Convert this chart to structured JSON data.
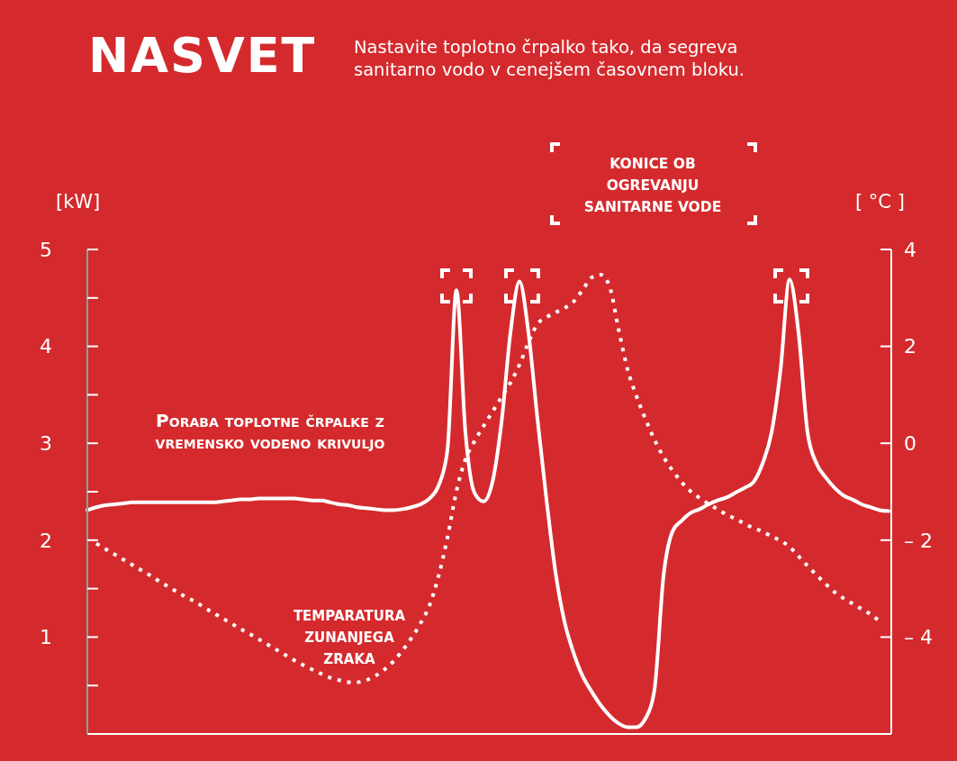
{
  "chart_data": {
    "type": "line",
    "title": "NASVET",
    "subtitle": "Nastavite toplotno črpalko tako, da segreva sanitarno vodo v cenejšem časovnem bloku.",
    "ylabel": "[kW]",
    "y2label": "[ °C ]",
    "annotations": [
      "KONICE OB OGREVANJU SANITARNE VODE"
    ],
    "categories": [
      null,
      null,
      null,
      null,
      null,
      null,
      null,
      null,
      null,
      null,
      null,
      null,
      null,
      null,
      null,
      null,
      null,
      null,
      null,
      null,
      null,
      null,
      null,
      null,
      null,
      null,
      null,
      null,
      null,
      null,
      null,
      null,
      null,
      null,
      null,
      null,
      null,
      null,
      null,
      null,
      null,
      null,
      null,
      null,
      null,
      null,
      null,
      null,
      null,
      null,
      null,
      null,
      null,
      null,
      null,
      null,
      null,
      null,
      null,
      null,
      null,
      null,
      null,
      null,
      null,
      null,
      null,
      null,
      null,
      null,
      null,
      null,
      null,
      null,
      null,
      null,
      null,
      null,
      null,
      null,
      null,
      null,
      null,
      null,
      null,
      null,
      null,
      null,
      null,
      null
    ],
    "series": [
      {
        "name": "Poraba toplotne črpalke z vremensko vodeno krivuljo",
        "color": "#ffffff",
        "line_style": "solid",
        "values": [
          2.31,
          2.34,
          2.36,
          2.37,
          2.38,
          2.39,
          2.39,
          2.39,
          2.39,
          2.39,
          2.39,
          2.39,
          2.39,
          2.39,
          2.39,
          2.4,
          2.41,
          2.42,
          2.42,
          2.43,
          2.43,
          2.43,
          2.43,
          2.43,
          2.42,
          2.41,
          2.41,
          2.39,
          2.37,
          2.36,
          2.34,
          2.33,
          2.32,
          2.31,
          2.31,
          2.32,
          2.34,
          2.37,
          2.43,
          2.56,
          2.93,
          4.58,
          3.11,
          2.49,
          2.4,
          2.6,
          3.21,
          4.14,
          4.67,
          4.14,
          3.25,
          2.42,
          1.67,
          1.16,
          0.84,
          0.6,
          0.44,
          0.3,
          0.19,
          0.11,
          0.07,
          0.07,
          0.16,
          0.46,
          1.63,
          2.09,
          2.2,
          2.28,
          2.32,
          2.37,
          2.41,
          2.44,
          2.49,
          2.54,
          2.6,
          2.79,
          3.11,
          3.76,
          4.69,
          4.14,
          3.11,
          2.79,
          2.65,
          2.54,
          2.46,
          2.42,
          2.37,
          2.34,
          2.31,
          2.3
        ]
      },
      {
        "name": "TEMPARATURA ZUNANJEGA ZRAKA",
        "color": "#ffffff",
        "line_style": "dotted",
        "axis": "y2",
        "values": [
          null,
          -2.07,
          -2.18,
          -2.29,
          -2.4,
          -2.51,
          -2.62,
          -2.73,
          -2.85,
          -2.96,
          -3.07,
          -3.18,
          -3.27,
          -3.39,
          -3.5,
          -3.61,
          -3.72,
          -3.83,
          -3.93,
          -4.04,
          -4.15,
          -4.26,
          -4.37,
          -4.48,
          -4.58,
          -4.67,
          -4.76,
          -4.84,
          -4.89,
          -4.93,
          -4.93,
          -4.89,
          -4.8,
          -4.67,
          -4.5,
          -4.28,
          -4.02,
          -3.72,
          -3.35,
          -2.75,
          -1.95,
          -0.99,
          -0.33,
          0.04,
          0.35,
          0.65,
          0.95,
          1.25,
          1.62,
          2.08,
          2.46,
          2.6,
          2.7,
          2.79,
          2.92,
          3.16,
          3.42,
          3.48,
          3.24,
          2.36,
          1.53,
          0.97,
          0.5,
          0.07,
          -0.28,
          -0.56,
          -0.8,
          -0.99,
          -1.13,
          -1.25,
          -1.36,
          -1.47,
          -1.56,
          -1.66,
          -1.75,
          -1.82,
          -1.92,
          -2.01,
          -2.14,
          -2.33,
          -2.53,
          -2.72,
          -2.9,
          -3.07,
          -3.2,
          -3.31,
          -3.42,
          -3.53,
          -3.67,
          null
        ]
      }
    ],
    "ylim": [
      0,
      5
    ],
    "yticks": [
      {
        "value": 0.5,
        "label": null
      },
      1,
      {
        "value": 1.5,
        "label": null
      },
      2,
      {
        "value": 2.5,
        "label": null
      },
      3,
      {
        "value": 3.5,
        "label": null
      },
      4,
      {
        "value": 4.5,
        "label": null
      },
      5
    ],
    "y2lim": [
      -6,
      4
    ],
    "y2ticks": [
      {
        "value": -6,
        "label": null
      },
      {
        "value": -4,
        "label": "– 4"
      },
      {
        "value": -2,
        "label": "– 2"
      },
      0,
      2,
      4
    ],
    "grid": false,
    "legend": false,
    "marker": "none"
  }
}
